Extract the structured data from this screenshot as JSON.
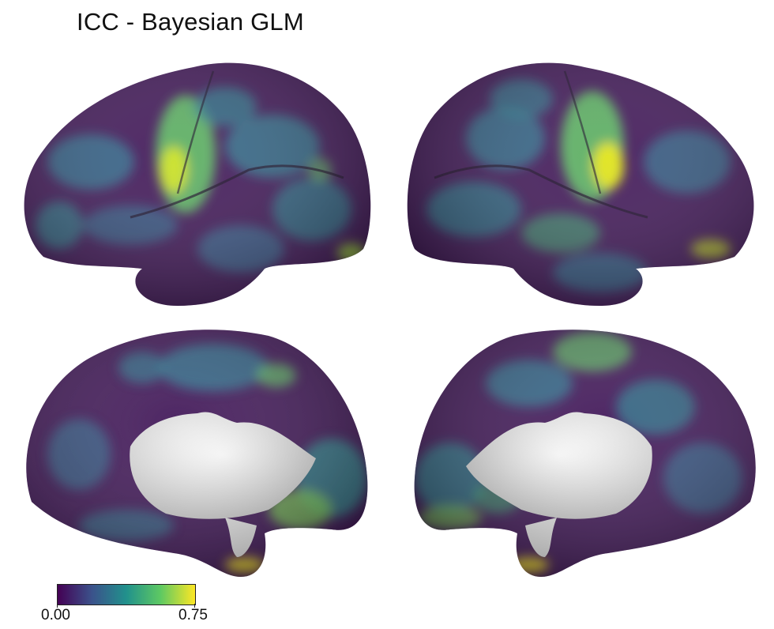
{
  "title": "ICC - Bayesian GLM",
  "colorbar": {
    "min_label": "0.00",
    "max_label": "0.75",
    "colormap": "viridis",
    "colors": [
      "#440154",
      "#3b528b",
      "#21918c",
      "#5ec962",
      "#fde725"
    ]
  },
  "views": [
    {
      "hemisphere": "left",
      "view": "lateral"
    },
    {
      "hemisphere": "right",
      "view": "lateral"
    },
    {
      "hemisphere": "left",
      "view": "medial"
    },
    {
      "hemisphere": "right",
      "view": "medial"
    }
  ],
  "colors": {
    "background": "#ffffff",
    "medial_wall": "#f2f2f2"
  }
}
